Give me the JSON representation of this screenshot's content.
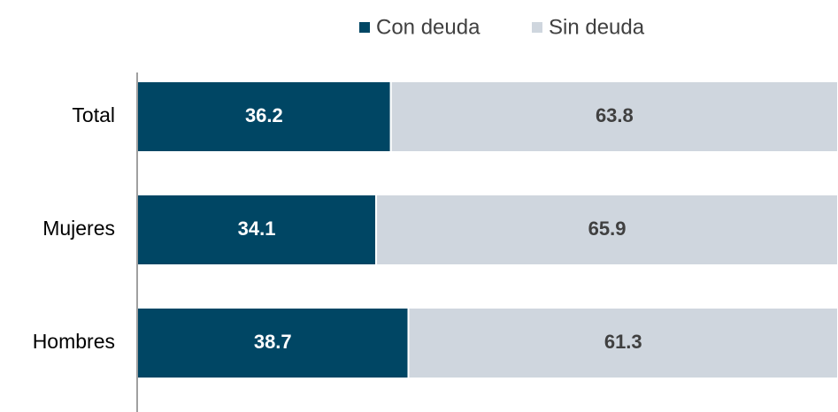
{
  "chart_data": {
    "type": "stacked_bar_horizontal",
    "categories": [
      "Total",
      "Mujeres",
      "Hombres"
    ],
    "series": [
      {
        "name": "Con deuda",
        "color": "#004664",
        "values": [
          36.2,
          34.1,
          38.7
        ]
      },
      {
        "name": "Sin deuda",
        "color": "#cfd6de",
        "values": [
          63.8,
          65.9,
          61.3
        ]
      }
    ],
    "xlim": [
      0,
      100
    ],
    "legend": "top"
  }
}
